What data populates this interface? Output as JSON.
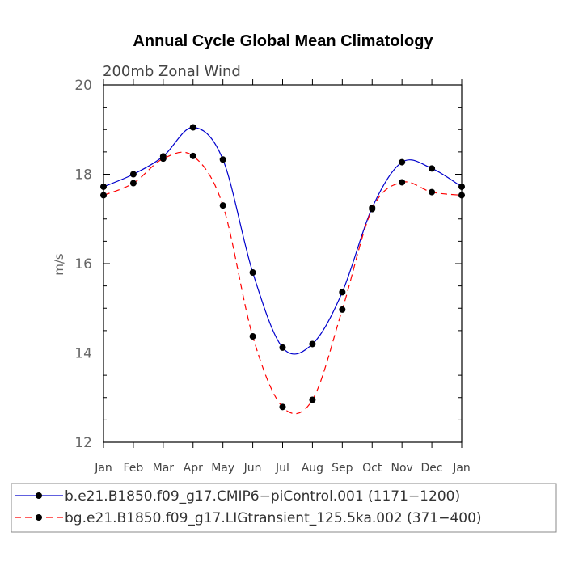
{
  "chart_data": {
    "type": "line",
    "title": "Annual Cycle Global Mean Climatology",
    "subtitle": "200mb Zonal Wind",
    "ylabel": "m/s",
    "xlabel": "",
    "ylim": [
      12,
      20
    ],
    "yticks": [
      12,
      14,
      16,
      18,
      20
    ],
    "categories": [
      "Jan",
      "Feb",
      "Mar",
      "Apr",
      "May",
      "Jun",
      "Jul",
      "Aug",
      "Sep",
      "Oct",
      "Nov",
      "Dec",
      "Jan"
    ],
    "legend_placement": "below",
    "series": [
      {
        "name": "b.e21.B1850.f09_g17.CMIP6−piControl.001 (1171−1200)",
        "color": "#0000cc",
        "line_style": "solid",
        "values": [
          17.72,
          18.0,
          18.4,
          19.05,
          18.33,
          15.8,
          14.12,
          14.2,
          15.36,
          17.25,
          18.27,
          18.13,
          17.72
        ]
      },
      {
        "name": "bg.e21.B1850.f09_g17.LIGtransient_125.5ka.002 (371−400)",
        "color": "#ff0000",
        "line_style": "dashed",
        "values": [
          17.53,
          17.8,
          18.35,
          18.41,
          17.3,
          14.37,
          12.79,
          12.95,
          14.97,
          17.22,
          17.82,
          17.6,
          17.53
        ]
      }
    ]
  }
}
